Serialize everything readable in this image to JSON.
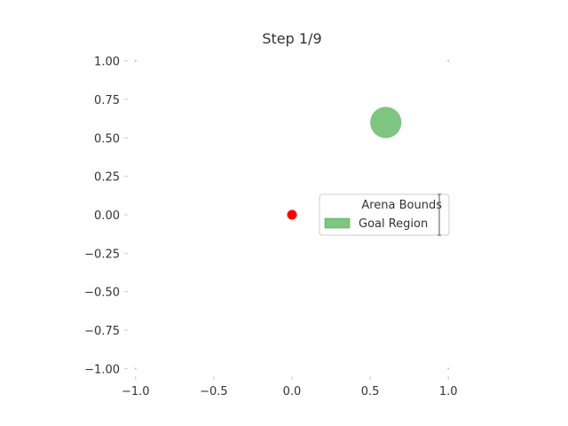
{
  "chart_data": {
    "type": "scatter",
    "title": "Step 1/9",
    "xlabel": "",
    "ylabel": "",
    "xlim": [
      -1.05,
      1.05
    ],
    "ylim": [
      -1.05,
      1.05
    ],
    "grid": false,
    "legend_position": "right",
    "x_ticks": [
      -1.0,
      -0.5,
      0.0,
      0.5,
      1.0
    ],
    "x_tick_labels": [
      "−1.0",
      "−0.5",
      "0.0",
      "0.5",
      "1.0"
    ],
    "y_ticks": [
      1.0,
      0.75,
      0.5,
      0.25,
      0.0,
      -0.25,
      -0.5,
      -0.75,
      -1.0
    ],
    "y_tick_labels": [
      "1.00",
      "0.75",
      "0.50",
      "0.25",
      "0.00",
      "−0.25",
      "−0.50",
      "−0.75",
      "−1.00"
    ],
    "agent": {
      "x": 0.0,
      "y": 0.0,
      "color": "#ff0000"
    },
    "goal": {
      "x": 0.6,
      "y": 0.6,
      "radius": 0.1,
      "color": "#4caf50",
      "opacity": 0.72
    },
    "arena_bounds": {
      "xmin": -1.0,
      "xmax": 1.0,
      "ymin": -1.0,
      "ymax": 1.0
    },
    "legend": [
      {
        "label": "Arena Bounds",
        "kind": "line"
      },
      {
        "label": "Goal Region",
        "kind": "patch",
        "color": "#4caf50"
      }
    ]
  }
}
